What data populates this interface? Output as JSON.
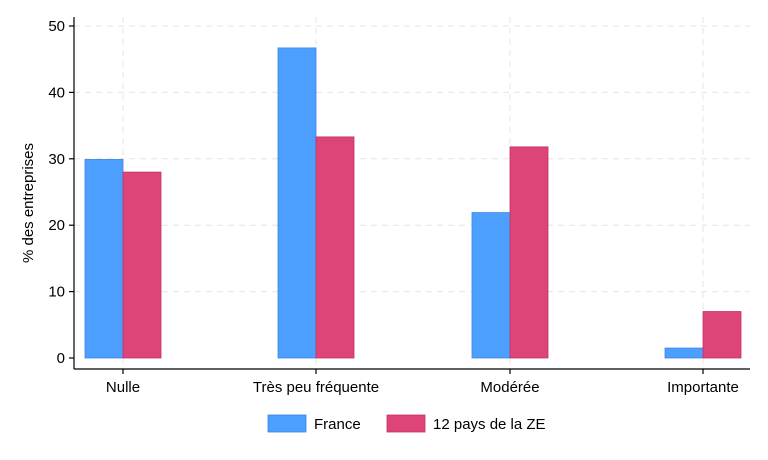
{
  "chart_data": {
    "type": "bar",
    "categories": [
      "Nulle",
      "Très peu fréquente",
      "Modérée",
      "Importante"
    ],
    "series": [
      {
        "name": "France",
        "values": [
          29.9,
          46.7,
          21.9,
          1.5
        ],
        "color": "#4c9fff"
      },
      {
        "name": "12 pays de la ZE",
        "values": [
          28.0,
          33.3,
          31.8,
          7.0
        ],
        "color": "#dd4477"
      }
    ],
    "ylabel": "% des entreprises",
    "xlabel": "",
    "ylim": [
      0,
      50
    ],
    "yticks": [
      0,
      10,
      20,
      30,
      40,
      50
    ],
    "grid": true,
    "legend_position": "bottom"
  }
}
